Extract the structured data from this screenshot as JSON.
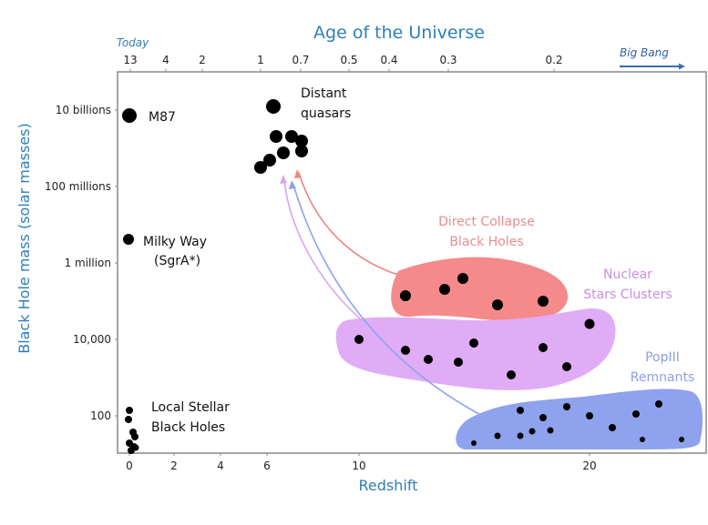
{
  "top_axis": {
    "title": "Age of the Universe",
    "today_label": "Today",
    "big_bang_label": "Big Bang",
    "ticks": [
      "13",
      "4",
      "2",
      "1",
      "0.7",
      "0.5",
      "0.4",
      "0.3",
      "0.2"
    ]
  },
  "x_axis": {
    "title": "Redshift",
    "ticks": [
      "0",
      "2",
      "4",
      "6",
      "10",
      "20"
    ]
  },
  "y_axis": {
    "title": "Black Hole mass (solar masses)",
    "ticks": [
      "10 billions",
      "100 millions",
      "1 million",
      "10,000",
      "100"
    ],
    "scale": "log"
  },
  "labels": {
    "m87": "M87",
    "milky_way": "Milky Way",
    "sgra": "(SgrA*)",
    "local_1": "Local Stellar",
    "local_2": "Black Holes",
    "quasars_1": "Distant",
    "quasars_2": "quasars",
    "dcbh_1": "Direct Collapse",
    "dcbh_2": "Black Holes",
    "nsc_1": "Nuclear",
    "nsc_2": "Stars Clusters",
    "pop3_1": "PopIII",
    "pop3_2": "Remnants"
  },
  "colors": {
    "axis_title": "#2f7fb8",
    "dcbh": "#f48a8a",
    "nsc": "#e0acf6",
    "pop3": "#8ea2ee",
    "dcbh_text": "#e98d8d",
    "nsc_text": "#c98ee2",
    "pop3_text": "#8c9fe6"
  }
}
